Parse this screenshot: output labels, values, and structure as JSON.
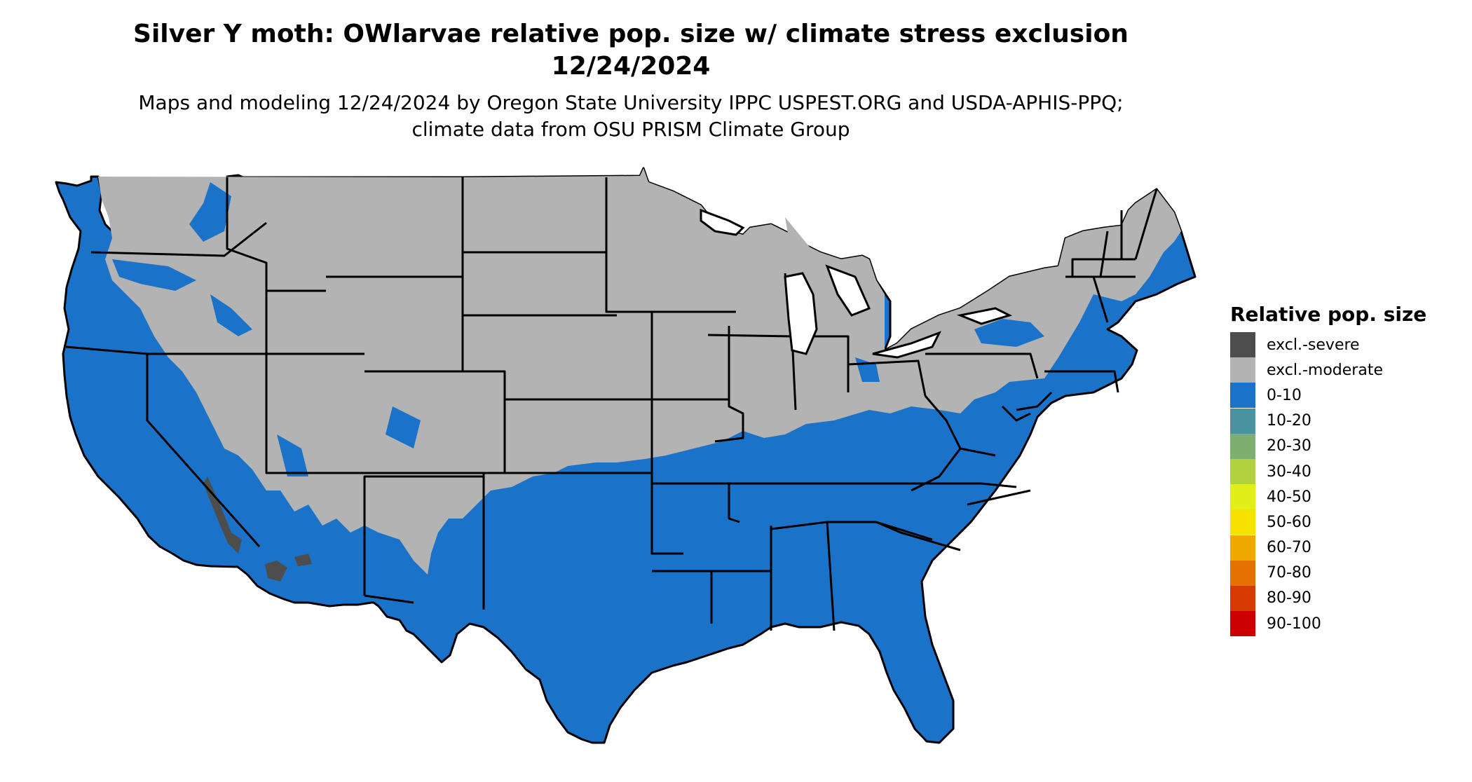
{
  "title": "Silver Y moth: OWlarvae relative pop. size w/ climate stress exclusion 12/24/2024",
  "subtitle": "Maps and modeling 12/24/2024 by Oregon State University IPPC USPEST.ORG and USDA-APHIS-PPQ; climate data from OSU PRISM Climate Group",
  "legend": {
    "title": "Relative pop. size",
    "items": [
      {
        "label": "excl.-severe",
        "color": "#4d4d4d"
      },
      {
        "label": "excl.-moderate",
        "color": "#b3b3b3"
      },
      {
        "label": "0-10",
        "color": "#1a73c9"
      },
      {
        "label": "10-20",
        "color": "#4a93a0"
      },
      {
        "label": "20-30",
        "color": "#7caf70"
      },
      {
        "label": "30-40",
        "color": "#b2d13f"
      },
      {
        "label": "40-50",
        "color": "#e2ee1a"
      },
      {
        "label": "50-60",
        "color": "#f7e100"
      },
      {
        "label": "60-70",
        "color": "#eea800"
      },
      {
        "label": "70-80",
        "color": "#e57100"
      },
      {
        "label": "80-90",
        "color": "#d63a00"
      },
      {
        "label": "90-100",
        "color": "#cc0000"
      }
    ]
  },
  "map": {
    "region": "contiguous United States",
    "colors": {
      "excluded_moderate": "#b3b3b3",
      "excluded_severe": "#4d4d4d",
      "low": "#1a73c9",
      "border": "#000000"
    }
  }
}
